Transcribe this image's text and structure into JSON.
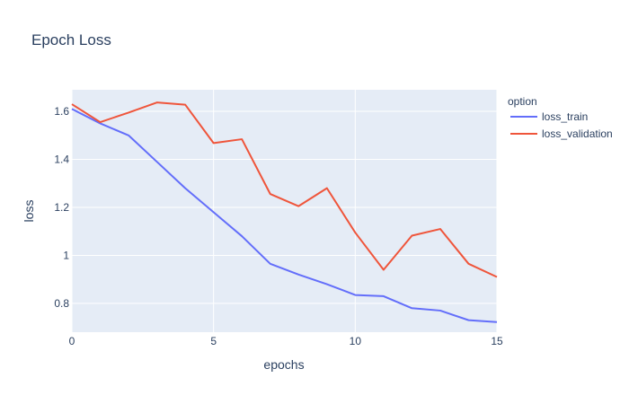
{
  "chart_data": {
    "type": "line",
    "title": "Epoch Loss",
    "xlabel": "epochs",
    "ylabel": "loss",
    "legend_title": "option",
    "legend_position": "right",
    "grid": true,
    "xlim": [
      0,
      15
    ],
    "ylim": [
      0.68,
      1.69
    ],
    "xticks": [
      0,
      5,
      10,
      15
    ],
    "yticks": [
      0.8,
      1,
      1.2,
      1.4,
      1.6
    ],
    "ytick_labels": [
      "0.8",
      "1",
      "1.2",
      "1.4",
      "1.6"
    ],
    "x": [
      0,
      1,
      2,
      3,
      4,
      5,
      6,
      7,
      8,
      9,
      10,
      11,
      12,
      13,
      14,
      15
    ],
    "series": [
      {
        "name": "loss_train",
        "color": "#636efa",
        "values": [
          1.61,
          1.55,
          1.5,
          1.39,
          1.28,
          1.18,
          1.08,
          0.965,
          0.92,
          0.88,
          0.835,
          0.83,
          0.78,
          0.77,
          0.73,
          0.722
        ]
      },
      {
        "name": "loss_validation",
        "color": "#ef553b",
        "values": [
          1.63,
          1.555,
          1.595,
          1.637,
          1.628,
          1.468,
          1.484,
          1.256,
          1.205,
          1.28,
          1.095,
          0.94,
          1.082,
          1.11,
          0.965,
          0.91
        ]
      }
    ]
  }
}
